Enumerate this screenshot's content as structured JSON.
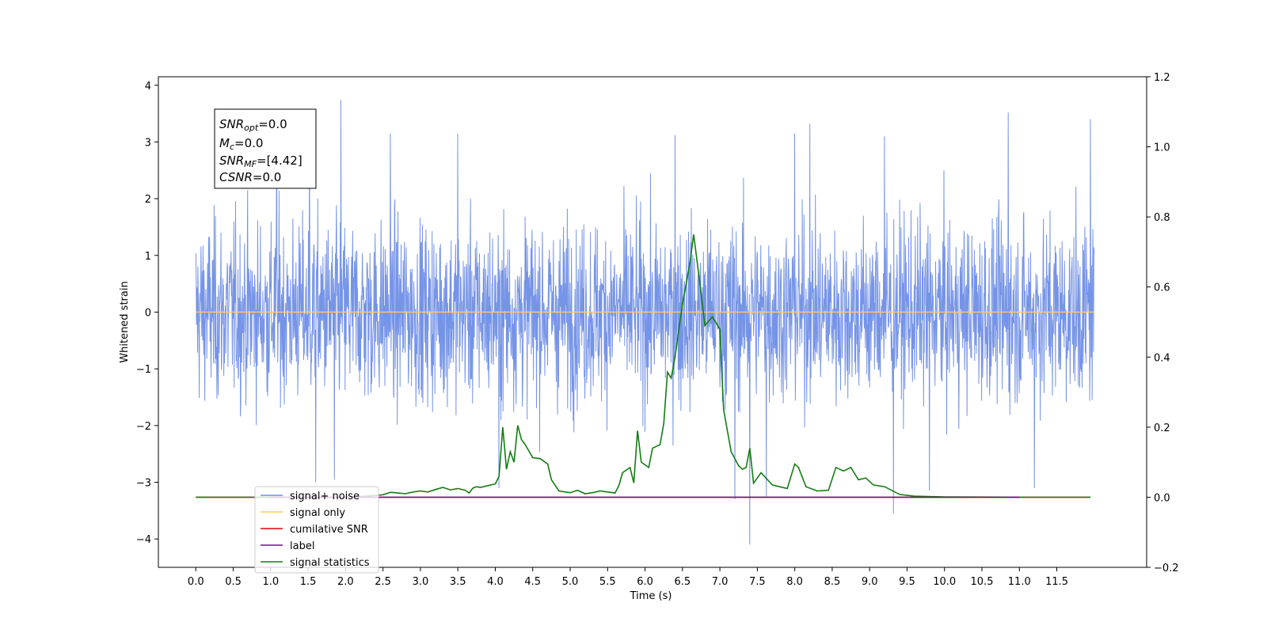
{
  "chart_data": {
    "type": "line",
    "xlabel": "Time (s)",
    "ylabel": "Whitened strain",
    "xlim": [
      -0.5,
      12.7
    ],
    "ylim": [
      -4.5,
      4.15
    ],
    "y2lim": [
      -0.2,
      1.2
    ],
    "x_ticks": [
      "0.0",
      "0.5",
      "1.0",
      "1.5",
      "2.0",
      "2.5",
      "3.0",
      "3.5",
      "4.0",
      "4.5",
      "5.0",
      "5.5",
      "6.0",
      "6.5",
      "7.0",
      "7.5",
      "8.0",
      "8.5",
      "9.0",
      "9.5",
      "10.0",
      "10.5",
      "11.0",
      "11.5"
    ],
    "y_ticks": [
      "4",
      "3",
      "2",
      "1",
      "0",
      "−1",
      "−2",
      "−3",
      "−4"
    ],
    "y2_ticks": [
      "1.2",
      "1.0",
      "0.8",
      "0.6",
      "0.4",
      "0.2",
      "0.0",
      "−0.2"
    ],
    "grid": false,
    "legend_position": "lower-left",
    "stats_box": [
      {
        "base": "SNR",
        "sub": "opt",
        "value": "=0.0"
      },
      {
        "base": "M",
        "sub": "c",
        "value": "=0.0"
      },
      {
        "base": "SNR",
        "sub": "MF",
        "value": "=[4.42]"
      },
      {
        "base": "CSNR",
        "sub": "",
        "value": "=0.0"
      }
    ],
    "series": [
      {
        "name": "signal+ noise",
        "color": "#6f8ee6",
        "axis": "left",
        "noise_std": 0.78,
        "t_range": [
          0,
          12
        ],
        "peaks": [
          [
            1.94,
            3.74
          ],
          [
            1.08,
            3.3
          ],
          [
            1.52,
            3.2
          ],
          [
            2.6,
            3.15
          ],
          [
            10.85,
            3.52
          ],
          [
            11.95,
            3.4
          ],
          [
            8.2,
            3.32
          ],
          [
            8.0,
            3.15
          ],
          [
            6.4,
            3.12
          ],
          [
            3.5,
            3.15
          ],
          [
            9.2,
            3.1
          ],
          [
            7.4,
            -4.1
          ],
          [
            9.32,
            -3.55
          ],
          [
            1.6,
            -3.0
          ],
          [
            4.05,
            -3.1
          ],
          [
            7.2,
            -3.3
          ],
          [
            7.62,
            -3.25
          ],
          [
            1.85,
            -2.95
          ],
          [
            9.8,
            -3.15
          ],
          [
            11.2,
            -3.1
          ]
        ]
      },
      {
        "name": "signal only",
        "color": "#ffc966",
        "axis": "left",
        "value": 0.0
      },
      {
        "name": "cumilative SNR",
        "color": "#e00000",
        "axis": "right",
        "value": 0.0
      },
      {
        "name": "label",
        "color": "#7b0d80",
        "axis": "right",
        "value": 0.0,
        "t_range": [
          1.0,
          11.0
        ]
      },
      {
        "name": "signal statistics",
        "color": "#137d13",
        "axis": "right",
        "x": [
          0.0,
          2.0,
          2.2,
          2.4,
          2.5,
          2.6,
          2.8,
          2.9,
          3.0,
          3.1,
          3.2,
          3.3,
          3.4,
          3.5,
          3.6,
          3.65,
          3.7,
          3.75,
          3.8,
          3.9,
          4.0,
          4.05,
          4.1,
          4.15,
          4.2,
          4.25,
          4.3,
          4.35,
          4.4,
          4.5,
          4.6,
          4.7,
          4.75,
          4.85,
          5.0,
          5.1,
          5.2,
          5.3,
          5.4,
          5.5,
          5.6,
          5.65,
          5.7,
          5.8,
          5.85,
          5.9,
          5.95,
          6.05,
          6.1,
          6.2,
          6.25,
          6.3,
          6.35,
          6.4,
          6.5,
          6.6,
          6.65,
          6.75,
          6.8,
          6.9,
          7.0,
          7.05,
          7.15,
          7.25,
          7.3,
          7.35,
          7.4,
          7.45,
          7.55,
          7.7,
          7.9,
          8.0,
          8.05,
          8.15,
          8.3,
          8.45,
          8.55,
          8.65,
          8.75,
          8.85,
          8.95,
          9.05,
          9.2,
          9.4,
          9.6,
          10.0,
          11.0,
          11.95
        ],
        "y": [
          0.0,
          0.0,
          0.002,
          0.005,
          0.007,
          0.014,
          0.01,
          0.015,
          0.018,
          0.015,
          0.022,
          0.028,
          0.021,
          0.025,
          0.02,
          0.012,
          0.026,
          0.03,
          0.028,
          0.033,
          0.038,
          0.06,
          0.2,
          0.08,
          0.13,
          0.1,
          0.205,
          0.165,
          0.15,
          0.113,
          0.11,
          0.095,
          0.05,
          0.018,
          0.013,
          0.02,
          0.01,
          0.013,
          0.018,
          0.015,
          0.012,
          0.033,
          0.07,
          0.085,
          0.041,
          0.19,
          0.1,
          0.085,
          0.14,
          0.15,
          0.21,
          0.357,
          0.34,
          0.4,
          0.55,
          0.67,
          0.75,
          0.58,
          0.49,
          0.515,
          0.48,
          0.25,
          0.13,
          0.09,
          0.08,
          0.085,
          0.14,
          0.04,
          0.07,
          0.035,
          0.025,
          0.095,
          0.085,
          0.03,
          0.018,
          0.02,
          0.085,
          0.075,
          0.085,
          0.05,
          0.055,
          0.035,
          0.03,
          0.008,
          0.003,
          0.001,
          0.0,
          0.0
        ]
      }
    ]
  }
}
